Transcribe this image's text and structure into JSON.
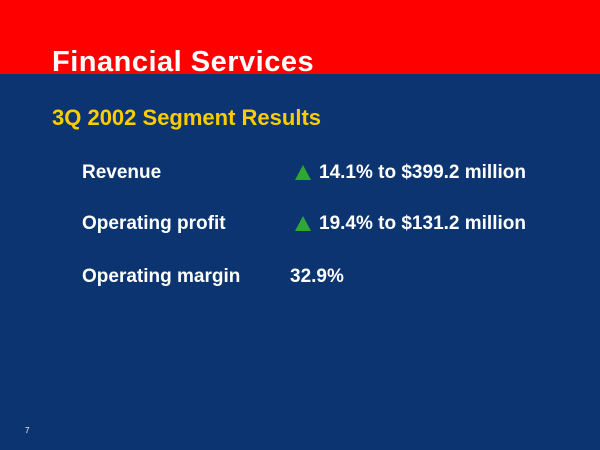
{
  "slide": {
    "title": "Financial Services",
    "subtitle": "3Q 2002 Segment Results",
    "page_number": "7",
    "colors": {
      "header_band": "#ff0000",
      "background": "#0b3470",
      "subtitle": "#ffcc00",
      "up_arrow": "#2fa82f"
    }
  },
  "metrics": [
    {
      "label": "Revenue",
      "icon": "up-triangle-icon",
      "value": "14.1% to $399.2 million"
    },
    {
      "label": "Operating profit",
      "icon": "up-triangle-icon",
      "value": "19.4% to $131.2 million"
    },
    {
      "label": "Operating margin",
      "icon": "",
      "value": "32.9%"
    }
  ]
}
